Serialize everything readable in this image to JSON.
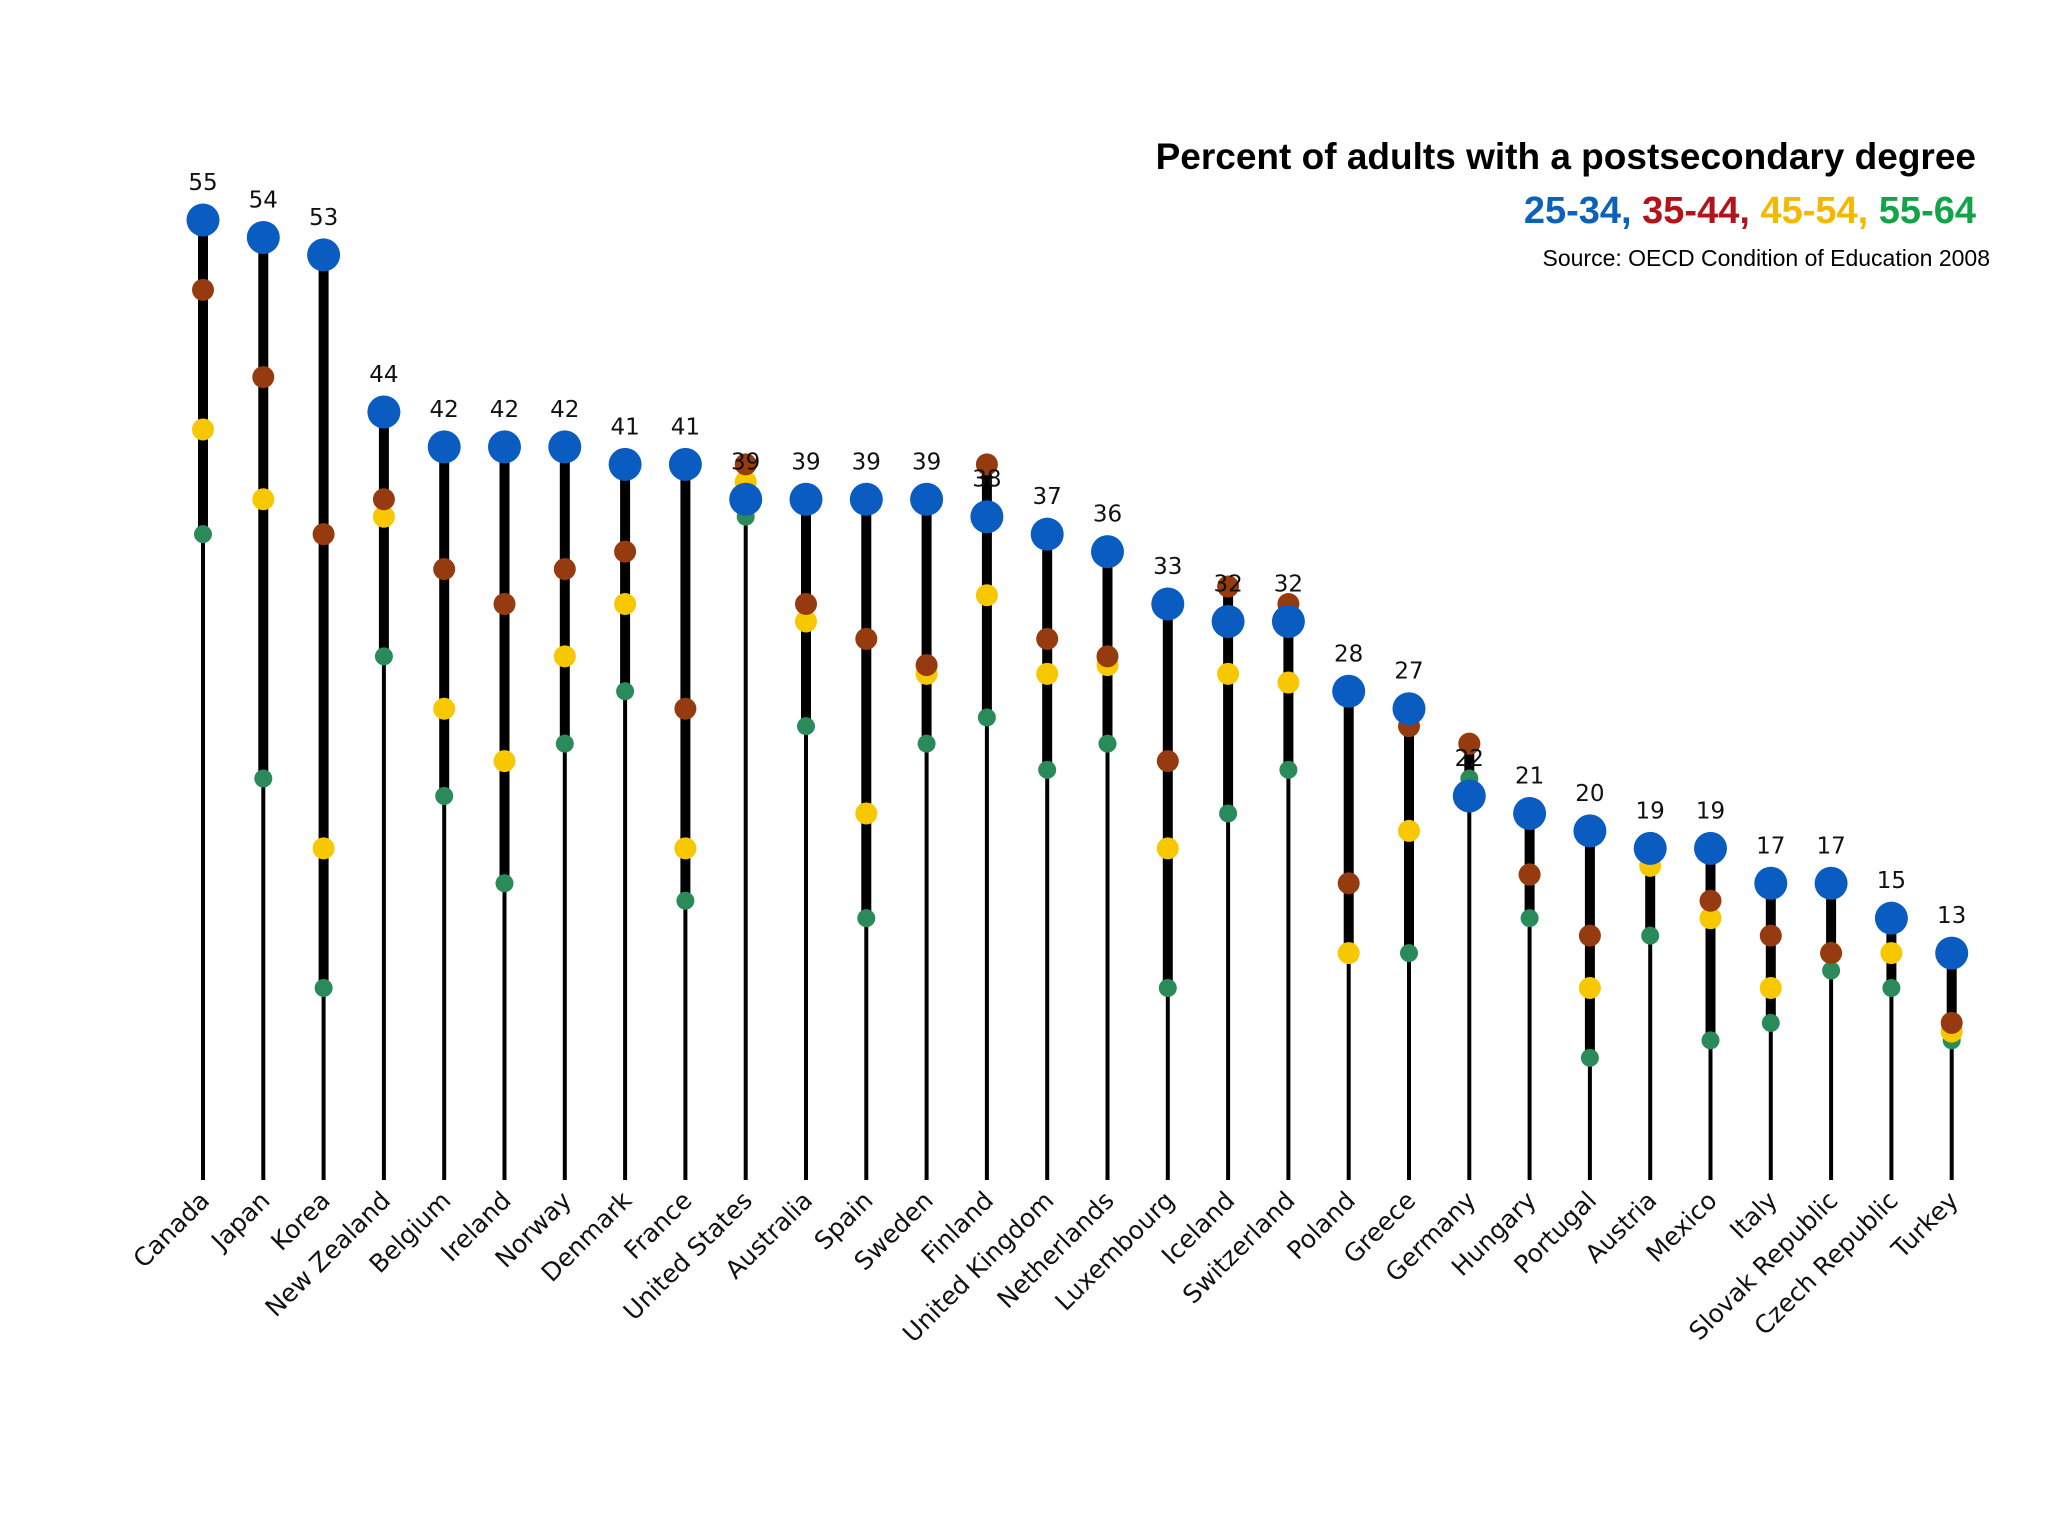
{
  "title": "Percent of adults with a postsecondary degree",
  "legend": [
    {
      "label": "25-34",
      "sep": ", ",
      "color": "#0a63b8"
    },
    {
      "label": "35-44",
      "sep": ", ",
      "color": "#b3141b"
    },
    {
      "label": "45-54",
      "sep": ", ",
      "color": "#f3b800"
    },
    {
      "label": "55-64",
      "sep": "",
      "color": "#15a34a"
    }
  ],
  "source": "Source: OECD Condition of Education 2008",
  "chart_data": {
    "type": "scatter",
    "title": "Percent of adults with a postsecondary degree",
    "categories": [
      "Canada",
      "Japan",
      "Korea",
      "New Zealand",
      "Belgium",
      "Ireland",
      "Norway",
      "Denmark",
      "France",
      "United States",
      "Australia",
      "Spain",
      "Sweden",
      "Finland",
      "United Kingdom",
      "Netherlands",
      "Luxembourg",
      "Iceland",
      "Switzerland",
      "Poland",
      "Greece",
      "Germany",
      "Hungary",
      "Portugal",
      "Austria",
      "Mexico",
      "Italy",
      "Slovak Republic",
      "Czech Republic",
      "Turkey"
    ],
    "series": [
      {
        "name": "25-34",
        "color": "#0a5cc0",
        "values": [
          55,
          54,
          53,
          44,
          42,
          42,
          42,
          41,
          41,
          39,
          39,
          39,
          39,
          38,
          37,
          36,
          33,
          32,
          32,
          28,
          27,
          22,
          21,
          20,
          19,
          19,
          17,
          17,
          15,
          13
        ]
      },
      {
        "name": "35-44",
        "color": "#963a10",
        "values": [
          51,
          46,
          37,
          39,
          35,
          33,
          35,
          36,
          27,
          41,
          33,
          31,
          29.5,
          41,
          31,
          30,
          24,
          34,
          33,
          17,
          26,
          25,
          17.5,
          14,
          19,
          16,
          14,
          13,
          15,
          9
        ]
      },
      {
        "name": "45-54",
        "color": "#f7c800",
        "values": [
          43,
          39,
          19,
          38,
          27,
          24,
          30,
          33,
          19,
          40,
          32,
          21,
          29,
          33.5,
          29,
          29.5,
          19,
          29,
          28.5,
          13,
          20,
          25,
          17.5,
          11,
          18,
          15,
          11,
          13,
          13,
          8.5
        ]
      },
      {
        "name": "55-64",
        "color": "#2a8a5a",
        "values": [
          37,
          23,
          11,
          30,
          22,
          17,
          25,
          28,
          16,
          38,
          26,
          15,
          25,
          26.5,
          23.5,
          25,
          11,
          21,
          23.5,
          13,
          13,
          23,
          15,
          7,
          14,
          8,
          9,
          12,
          11,
          8
        ]
      }
    ],
    "value_labels": [
      "55",
      "54",
      "53",
      "44",
      "42",
      "42",
      "42",
      "41",
      "41",
      "39",
      "39",
      "39",
      "39",
      "38",
      "37",
      "36",
      "33",
      "32",
      "32",
      "28",
      "27",
      "22",
      "21",
      "20",
      "19",
      "19",
      "17",
      "17",
      "15",
      "13"
    ],
    "ylim": [
      0,
      55
    ],
    "grid": false,
    "legend": "top-right"
  }
}
